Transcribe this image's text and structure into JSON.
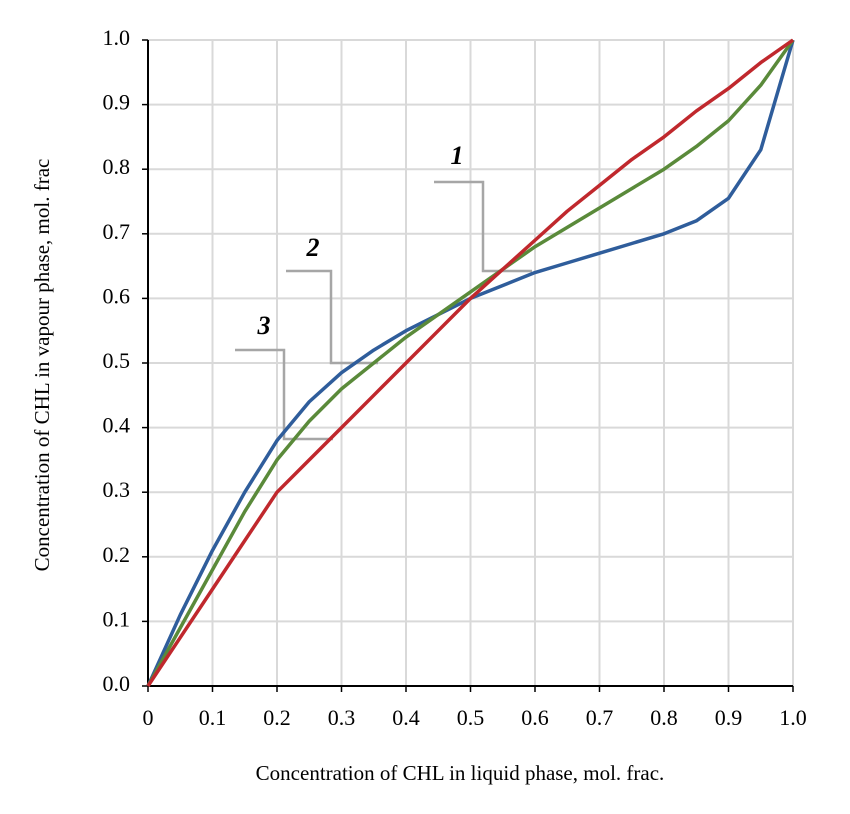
{
  "chart_data": {
    "type": "line",
    "x_label": "Concentration of CHL in liquid phase, mol. frac.",
    "y_label": "Concentration of CHL in vapour phase, mol. frac",
    "x": [
      0,
      0.05,
      0.1,
      0.15,
      0.2,
      0.25,
      0.3,
      0.35,
      0.4,
      0.45,
      0.5,
      0.55,
      0.6,
      0.65,
      0.7,
      0.75,
      0.8,
      0.85,
      0.9,
      0.95,
      1
    ],
    "series": [
      {
        "name": "1",
        "color": "#2f5d9b",
        "values": [
          0,
          0.11,
          0.21,
          0.3,
          0.38,
          0.44,
          0.485,
          0.52,
          0.55,
          0.575,
          0.6,
          0.62,
          0.64,
          0.655,
          0.67,
          0.685,
          0.7,
          0.72,
          0.755,
          0.83,
          1.0
        ]
      },
      {
        "name": "2",
        "color": "#5a8a3a",
        "values": [
          0,
          0.09,
          0.18,
          0.27,
          0.35,
          0.41,
          0.46,
          0.5,
          0.54,
          0.575,
          0.61,
          0.645,
          0.68,
          0.71,
          0.74,
          0.77,
          0.8,
          0.835,
          0.875,
          0.93,
          1.0
        ]
      },
      {
        "name": "3",
        "color": "#c0282d",
        "values": [
          0,
          0.075,
          0.15,
          0.225,
          0.3,
          0.35,
          0.4,
          0.45,
          0.5,
          0.55,
          0.6,
          0.645,
          0.69,
          0.735,
          0.775,
          0.815,
          0.85,
          0.89,
          0.925,
          0.965,
          1.0
        ]
      }
    ],
    "xlim": [
      0,
      1
    ],
    "ylim": [
      0,
      1
    ],
    "xticks": [
      0,
      0.1,
      0.2,
      0.3,
      0.4,
      0.5,
      0.6,
      0.7,
      0.8,
      0.9,
      {
        "value": 1,
        "label": "1.0"
      }
    ],
    "yticks": [
      {
        "value": 0,
        "label": "0.0"
      },
      0.1,
      0.2,
      0.3,
      0.4,
      0.5,
      0.6,
      0.7,
      0.8,
      0.9,
      {
        "value": 1,
        "label": "1.0"
      }
    ],
    "grid": true
  }
}
